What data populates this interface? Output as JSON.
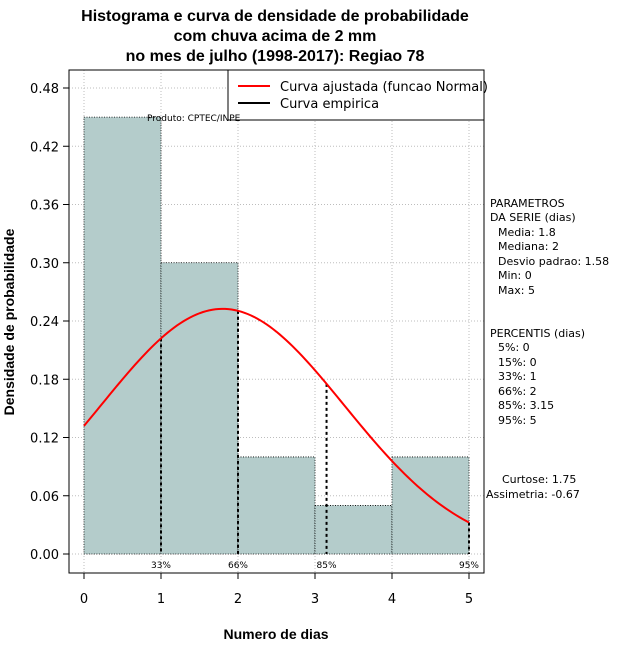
{
  "chart_data": {
    "type": "bar",
    "title_lines": [
      "Histograma e curva de densidade de probabilidade",
      "com chuva acima de 2 mm",
      "no mes de julho (1998-2017): Regiao 78"
    ],
    "xlabel": "Numero de dias",
    "ylabel": "Densidade de probabilidade",
    "xlim": [
      0,
      5
    ],
    "ylim": [
      0,
      0.48
    ],
    "x_ticks": [
      "0",
      "1",
      "2",
      "3",
      "4",
      "5"
    ],
    "y_ticks": [
      "0.00",
      "0.06",
      "0.12",
      "0.18",
      "0.24",
      "0.30",
      "0.36",
      "0.42",
      "0.48"
    ],
    "bin_edges": [
      0,
      1,
      2,
      3,
      4,
      5
    ],
    "values": [
      0.45,
      0.3,
      0.1,
      0.05,
      0.1
    ],
    "bar_color": "#b4cccb",
    "curve_color": "#ff0000",
    "normal_fit": {
      "mean": 1.8,
      "sd": 1.58,
      "x_from": 0,
      "x_to": 5
    },
    "percentile_markers": [
      {
        "label": "33%",
        "x": 1
      },
      {
        "label": "66%",
        "x": 2
      },
      {
        "label": "85%",
        "x": 3.15
      },
      {
        "label": "95%",
        "x": 5
      }
    ],
    "legend": {
      "position": "top-right",
      "items": [
        {
          "label": "Curva ajustada (funcao Normal)",
          "color": "#ff0000"
        },
        {
          "label": "Curva empirica",
          "color": "#000000"
        }
      ]
    },
    "annotation": "Produto: CPTEC/INPE"
  },
  "side_panel": {
    "params_title": [
      "PARAMETROS",
      "DA SERIE (dias)"
    ],
    "params": [
      "Media: 1.8",
      "Mediana: 2",
      "Desvio padrao: 1.58",
      "Min: 0",
      "Max: 5"
    ],
    "percentis_title": "PERCENTIS (dias)",
    "percentis": [
      "5%: 0",
      "15%: 0",
      "33%: 1",
      "66%: 2",
      "85%: 3.15",
      "95%: 5"
    ],
    "shape": [
      "Curtose: 1.75",
      "Assimetria: -0.67"
    ]
  }
}
